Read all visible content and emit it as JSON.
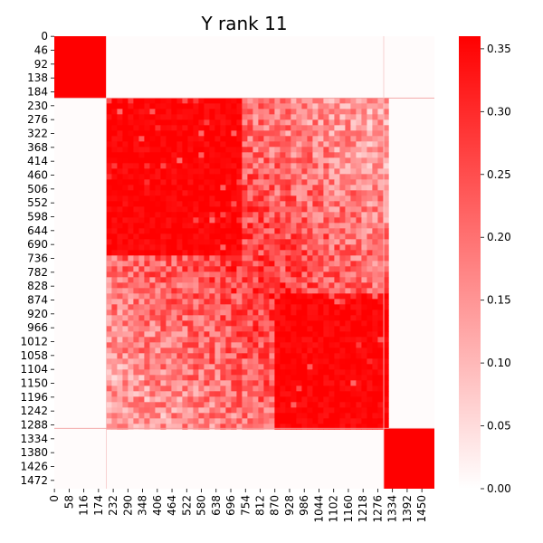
{
  "chart_data": {
    "type": "heatmap",
    "title": "Y rank 11",
    "n": 1500,
    "blocks": [
      {
        "start": 0,
        "end": 205,
        "value": 0.36
      },
      {
        "start": 205,
        "end": 1300,
        "value": 0.33,
        "textured": true
      },
      {
        "start": 1300,
        "end": 1500,
        "value": 0.36
      }
    ],
    "sub_blocks": [
      {
        "start": 205,
        "end": 720,
        "value": 0.35
      },
      {
        "start": 850,
        "end": 1300,
        "value": 0.35
      }
    ],
    "background_value": 0.006,
    "y_ticks": [
      0,
      46,
      92,
      138,
      184,
      230,
      276,
      322,
      368,
      414,
      460,
      506,
      552,
      598,
      644,
      690,
      736,
      782,
      828,
      874,
      920,
      966,
      1012,
      1058,
      1104,
      1150,
      1196,
      1242,
      1288,
      1334,
      1380,
      1426,
      1472
    ],
    "x_ticks": [
      0,
      58,
      116,
      174,
      232,
      290,
      348,
      406,
      464,
      522,
      580,
      638,
      696,
      754,
      812,
      870,
      928,
      986,
      1044,
      1102,
      1160,
      1218,
      1276,
      1334,
      1392,
      1450
    ],
    "colorbar": {
      "min": 0.0,
      "max": 0.36,
      "ticks": [
        0.0,
        0.05,
        0.1,
        0.15,
        0.2,
        0.25,
        0.3,
        0.35
      ],
      "tick_labels": [
        "0.00",
        "0.05",
        "0.10",
        "0.15",
        "0.20",
        "0.25",
        "0.30",
        "0.35"
      ],
      "low_color": "#ffffff",
      "high_color": "#ff0000"
    }
  }
}
